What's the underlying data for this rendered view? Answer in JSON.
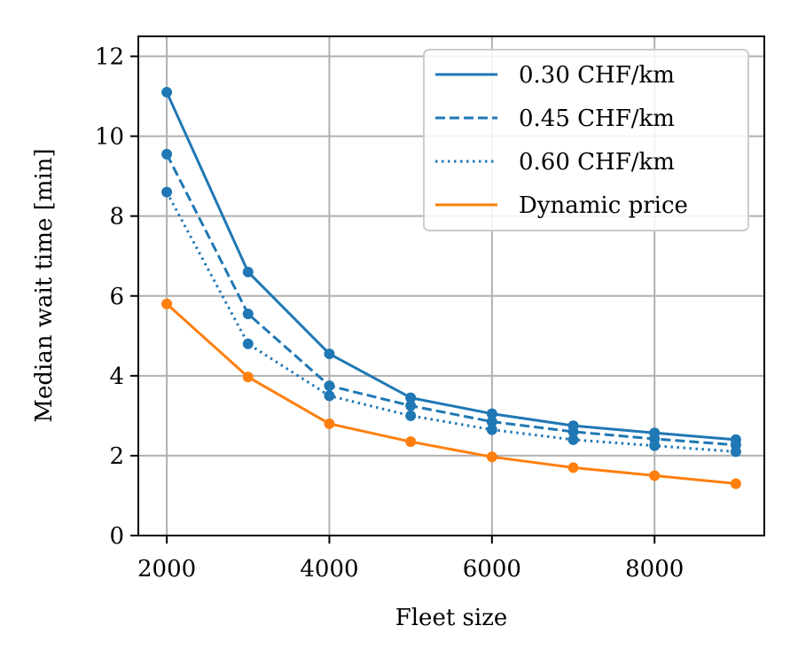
{
  "chart_data": {
    "type": "line",
    "title": "",
    "xlabel": "Fleet size",
    "ylabel": "Median wait time [min]",
    "xlim": [
      1650,
      9350
    ],
    "ylim": [
      0,
      12.5
    ],
    "xticks": [
      2000,
      4000,
      6000,
      8000
    ],
    "yticks": [
      0,
      2,
      4,
      6,
      8,
      10,
      12
    ],
    "grid": true,
    "legend_position": "top-right",
    "x": [
      2000,
      3000,
      4000,
      5000,
      6000,
      7000,
      8000,
      9000
    ],
    "series": [
      {
        "name": "0.30 CHF/km",
        "style": "solid",
        "color": "#1f77b4",
        "values": [
          11.1,
          6.6,
          4.55,
          3.45,
          3.05,
          2.75,
          2.57,
          2.4
        ]
      },
      {
        "name": "0.45 CHF/km",
        "style": "dashed",
        "color": "#1f77b4",
        "values": [
          9.55,
          5.55,
          3.75,
          3.25,
          2.85,
          2.6,
          2.42,
          2.27
        ]
      },
      {
        "name": "0.60 CHF/km",
        "style": "dotted",
        "color": "#1f77b4",
        "values": [
          8.6,
          4.8,
          3.5,
          3.0,
          2.65,
          2.4,
          2.25,
          2.1
        ]
      },
      {
        "name": "Dynamic price",
        "style": "solid",
        "color": "#ff7f0e",
        "values": [
          5.8,
          3.97,
          2.8,
          2.35,
          1.97,
          1.7,
          1.5,
          1.3
        ]
      }
    ]
  }
}
